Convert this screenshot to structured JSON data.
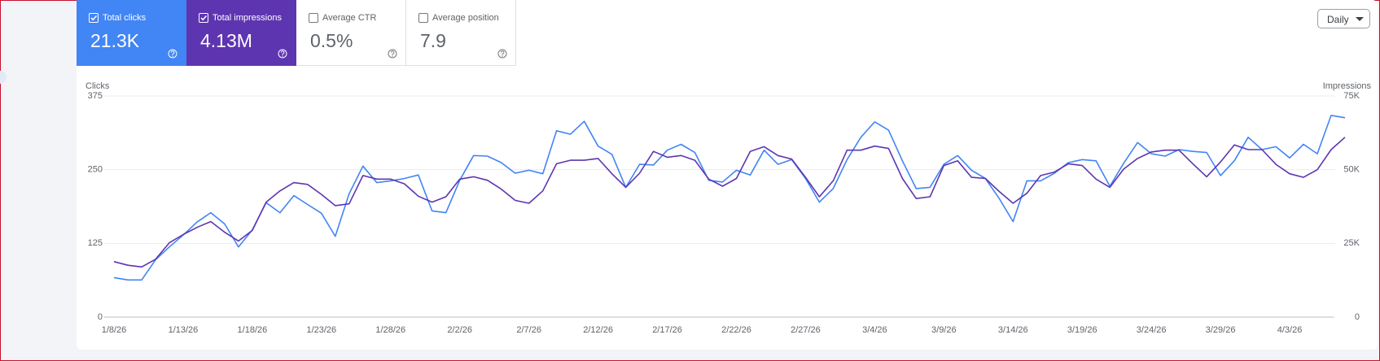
{
  "cards": [
    {
      "label": "Total clicks",
      "value": "21.3K",
      "checked": true,
      "color": "#4285f4"
    },
    {
      "label": "Total impressions",
      "value": "4.13M",
      "checked": true,
      "color": "#5e35b1"
    },
    {
      "label": "Average CTR",
      "value": "0.5%",
      "checked": false
    },
    {
      "label": "Average position",
      "value": "7.9",
      "checked": false
    }
  ],
  "granularity": "Daily",
  "chart_data": {
    "type": "line",
    "y_label": "Clicks",
    "y2_label": "Impressions",
    "categories": [
      "1/8/26",
      null,
      null,
      null,
      null,
      "1/13/26",
      null,
      null,
      null,
      null,
      "1/18/26",
      null,
      null,
      null,
      null,
      "1/23/26",
      null,
      null,
      null,
      null,
      "1/28/26",
      null,
      null,
      null,
      null,
      "2/2/26",
      null,
      null,
      null,
      null,
      "2/7/26",
      null,
      null,
      null,
      null,
      "2/12/26",
      null,
      null,
      null,
      null,
      "2/17/26",
      null,
      null,
      null,
      null,
      "2/22/26",
      null,
      null,
      null,
      null,
      "2/27/26",
      null,
      null,
      null,
      null,
      "3/4/26",
      null,
      null,
      null,
      null,
      "3/9/26",
      null,
      null,
      null,
      null,
      "3/14/26",
      null,
      null,
      null,
      null,
      "3/19/26",
      null,
      null,
      null,
      null,
      "3/24/26",
      null,
      null,
      null,
      null,
      "3/29/26",
      null,
      null,
      null,
      null,
      "4/3/26",
      null,
      null,
      null,
      null
    ],
    "series": [
      {
        "name": "Total clicks",
        "color": "#4285f4",
        "values": [
          67,
          63,
          63,
          97,
          119,
          139,
          161,
          177,
          158,
          119,
          148,
          194,
          177,
          206,
          191,
          176,
          137,
          209,
          256,
          228,
          231,
          235,
          241,
          180,
          177,
          232,
          274,
          273,
          262,
          244,
          249,
          243,
          316,
          310,
          332,
          290,
          276,
          220,
          259,
          258,
          283,
          293,
          279,
          232,
          229,
          249,
          241,
          283,
          259,
          267,
          235,
          195,
          218,
          267,
          305,
          331,
          317,
          265,
          218,
          220,
          259,
          274,
          249,
          235,
          201,
          162,
          231,
          231,
          244,
          262,
          267,
          265,
          222,
          261,
          296,
          277,
          273,
          284,
          281,
          279,
          240,
          265,
          305,
          284,
          289,
          270,
          293,
          277,
          342,
          338
        ]
      },
      {
        "name": "Total impressions",
        "color": "#5e35b1",
        "axis": "y2",
        "values": [
          18800,
          17600,
          17000,
          19600,
          25200,
          28000,
          30400,
          32400,
          28800,
          25800,
          29400,
          39000,
          42800,
          45600,
          45000,
          41600,
          37800,
          38400,
          48000,
          46800,
          46800,
          45200,
          41000,
          39000,
          40800,
          46800,
          47600,
          46400,
          43400,
          39600,
          38600,
          42800,
          52000,
          53200,
          53200,
          53800,
          48600,
          44000,
          48800,
          56200,
          54200,
          54800,
          53200,
          46800,
          44400,
          47000,
          56200,
          57800,
          54800,
          53600,
          47400,
          40800,
          46200,
          56600,
          56600,
          58000,
          57200,
          47000,
          40200,
          40800,
          51400,
          53000,
          47400,
          47000,
          42600,
          38600,
          42000,
          48000,
          49200,
          52000,
          51400,
          46800,
          44000,
          50200,
          53800,
          56000,
          56600,
          56600,
          52000,
          47600,
          52600,
          58400,
          56800,
          56800,
          51800,
          48600,
          47400,
          50000,
          56800,
          61000
        ]
      }
    ],
    "ylim": [
      0,
      375
    ],
    "yticks": [
      0,
      125,
      250,
      375
    ],
    "y2lim": [
      0,
      75000
    ],
    "y2ticks": [
      0,
      {
        "value": 25000,
        "label": "25K"
      },
      {
        "value": 50000,
        "label": "50K"
      },
      {
        "value": 75000,
        "label": "75K"
      }
    ],
    "grid": true
  }
}
